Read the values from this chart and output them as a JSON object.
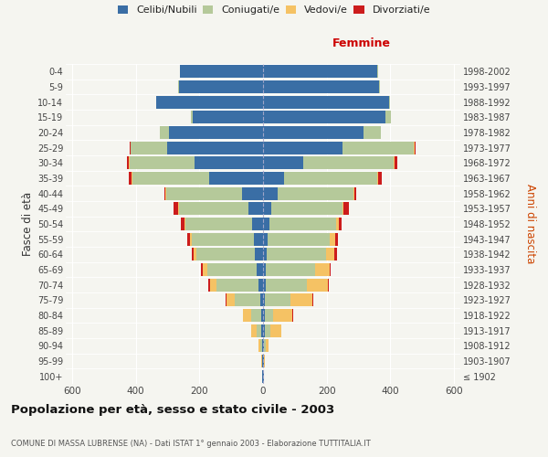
{
  "age_groups": [
    "100+",
    "95-99",
    "90-94",
    "85-89",
    "80-84",
    "75-79",
    "70-74",
    "65-69",
    "60-64",
    "55-59",
    "50-54",
    "45-49",
    "40-44",
    "35-39",
    "30-34",
    "25-29",
    "20-24",
    "15-19",
    "10-14",
    "5-9",
    "0-4"
  ],
  "birth_years": [
    "≤ 1902",
    "1903-1907",
    "1908-1912",
    "1913-1917",
    "1918-1922",
    "1923-1927",
    "1928-1932",
    "1933-1937",
    "1938-1942",
    "1943-1947",
    "1948-1952",
    "1953-1957",
    "1958-1962",
    "1963-1967",
    "1968-1972",
    "1973-1977",
    "1978-1982",
    "1983-1987",
    "1988-1992",
    "1993-1997",
    "1998-2002"
  ],
  "colors": {
    "celibi": "#3a6ea5",
    "coniugati": "#b5c99a",
    "vedovi": "#f5c264",
    "divorziati": "#cc1c1c"
  },
  "males": {
    "celibi": [
      2,
      2,
      3,
      5,
      6,
      8,
      15,
      20,
      25,
      30,
      35,
      45,
      65,
      170,
      215,
      300,
      295,
      220,
      335,
      265,
      260
    ],
    "coniugati": [
      0,
      2,
      5,
      15,
      30,
      80,
      130,
      155,
      185,
      195,
      210,
      220,
      240,
      240,
      205,
      115,
      28,
      8,
      2,
      2,
      2
    ],
    "vedovi": [
      0,
      2,
      6,
      18,
      28,
      28,
      22,
      14,
      8,
      5,
      3,
      2,
      2,
      2,
      2,
      2,
      0,
      0,
      0,
      0,
      0
    ],
    "divorziati": [
      0,
      0,
      0,
      0,
      0,
      2,
      5,
      5,
      5,
      8,
      10,
      15,
      3,
      10,
      5,
      2,
      0,
      0,
      0,
      0,
      0
    ]
  },
  "females": {
    "celibi": [
      2,
      2,
      3,
      5,
      5,
      5,
      8,
      10,
      12,
      15,
      20,
      25,
      45,
      65,
      125,
      250,
      315,
      385,
      395,
      365,
      360
    ],
    "coniugati": [
      0,
      2,
      5,
      18,
      28,
      80,
      130,
      155,
      185,
      195,
      210,
      225,
      240,
      295,
      285,
      225,
      55,
      18,
      5,
      2,
      2
    ],
    "vedovi": [
      0,
      3,
      10,
      35,
      60,
      70,
      65,
      45,
      28,
      18,
      8,
      3,
      2,
      2,
      2,
      2,
      0,
      0,
      0,
      0,
      0
    ],
    "divorziati": [
      0,
      0,
      0,
      0,
      2,
      2,
      5,
      3,
      8,
      6,
      10,
      18,
      5,
      10,
      10,
      3,
      0,
      0,
      0,
      0,
      0
    ]
  },
  "xlim": 620,
  "title": "Popolazione per età, sesso e stato civile - 2003",
  "subtitle": "COMUNE DI MASSA LUBRENSE (NA) - Dati ISTAT 1° gennaio 2003 - Elaborazione TUTTITALIA.IT",
  "ylabel_left": "Fasce di età",
  "ylabel_right": "Anni di nascita",
  "xlabel_femmine": "Femmine",
  "bg_color": "#f5f5f0",
  "bar_height": 0.85
}
